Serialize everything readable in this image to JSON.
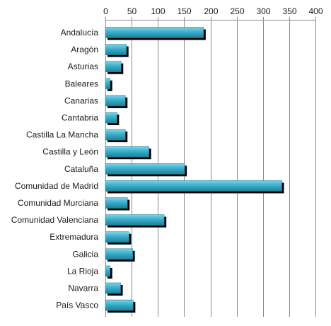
{
  "chart_data": {
    "type": "bar",
    "orientation": "horizontal",
    "categories": [
      "Andalucía",
      "Aragón",
      "Asturias",
      "Baleares",
      "Canarias",
      "Cantabria",
      "Castilla La Mancha",
      "Castilla y León",
      "Cataluña",
      "Comunidad de Madrid",
      "Comunidad Murciana",
      "Comunidad Valenciana",
      "Extremadura",
      "Galicia",
      "La Rioja",
      "Navarra",
      "País Vasco"
    ],
    "values": [
      187,
      40,
      30,
      9,
      38,
      22,
      38,
      83,
      151,
      336,
      42,
      112,
      45,
      52,
      9,
      29,
      53
    ],
    "x_ticks": [
      "0",
      "50",
      "100",
      "150",
      "200",
      "250",
      "300",
      "350",
      "400"
    ],
    "xlim": [
      0,
      400
    ],
    "grid": "vertical",
    "x_axis_position": "top",
    "colors": {
      "bar_top": "#7dd3e6",
      "bar_mid": "#3aaec9",
      "bar_bottom": "#1d7f99",
      "bar_shadow": "#000000",
      "grid": "#8a8a8a",
      "axis": "#8a8a8a"
    }
  }
}
